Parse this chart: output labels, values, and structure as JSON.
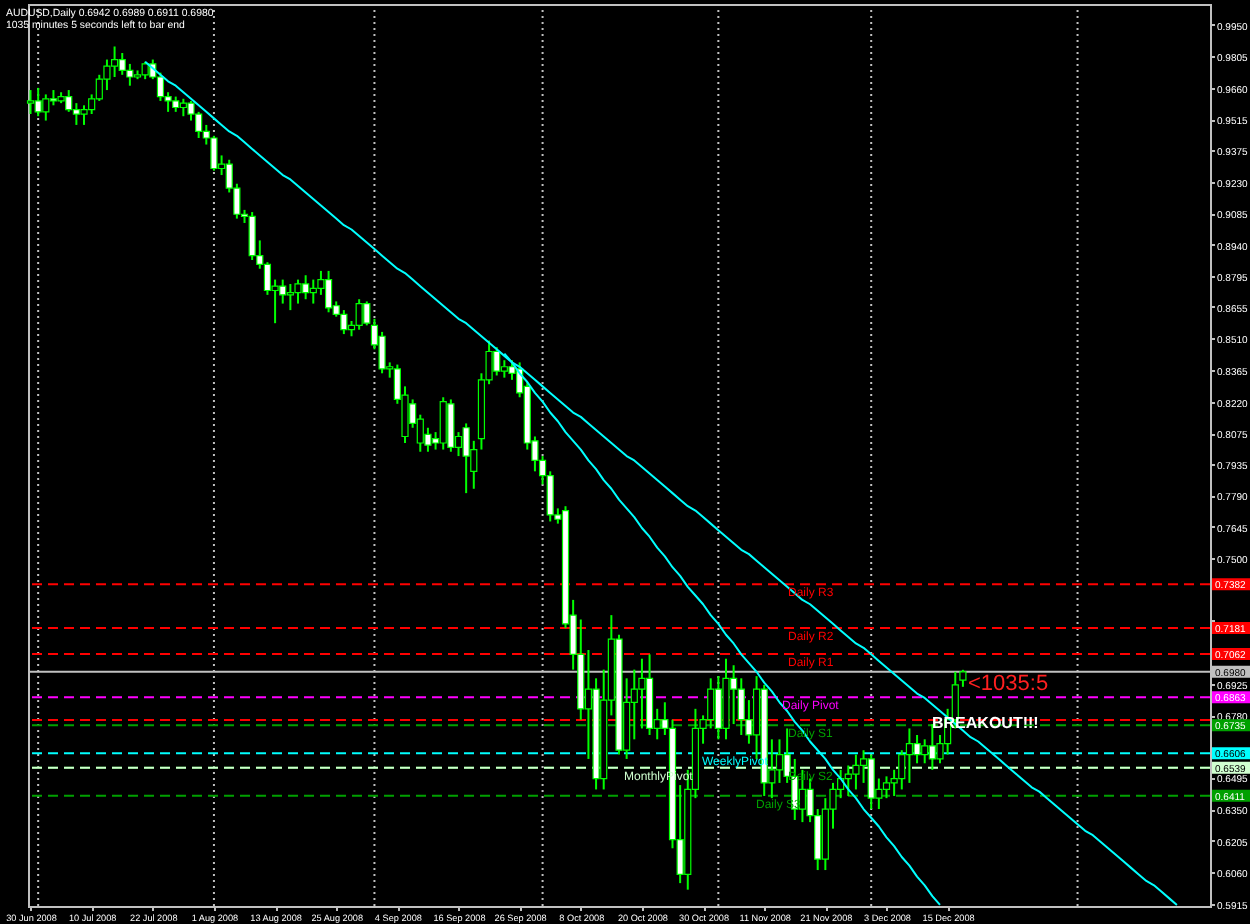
{
  "chart_data": {
    "type": "candlestick",
    "title": "AUDUSD,Daily  0.6942 0.6989 0.6911 0.6980",
    "subtitle": "1035 minutes 5 seconds left to bar end",
    "categories": [
      "30 Jun 2008",
      null,
      null,
      null,
      null,
      null,
      null,
      null,
      "10 Jul 2008",
      null,
      null,
      null,
      null,
      null,
      null,
      null,
      "22 Jul 2008",
      null,
      null,
      null,
      null,
      null,
      null,
      null,
      "1 Aug 2008",
      null,
      null,
      null,
      null,
      null,
      null,
      null,
      "13 Aug 2008",
      null,
      null,
      null,
      null,
      null,
      null,
      null,
      "25 Aug 2008",
      null,
      null,
      null,
      null,
      null,
      null,
      null,
      "4 Sep 2008",
      null,
      null,
      null,
      null,
      null,
      null,
      null,
      "16 Sep 2008",
      null,
      null,
      null,
      null,
      null,
      null,
      null,
      "26 Sep 2008",
      null,
      null,
      null,
      null,
      null,
      null,
      null,
      "8 Oct 2008",
      null,
      null,
      null,
      null,
      null,
      null,
      null,
      "20 Oct 2008",
      null,
      null,
      null,
      null,
      null,
      null,
      null,
      "30 Oct 2008",
      null,
      null,
      null,
      null,
      null,
      null,
      null,
      "11 Nov 2008",
      null,
      null,
      null,
      null,
      null,
      null,
      null,
      "21 Nov 2008",
      null,
      null,
      null,
      null,
      null,
      null,
      null,
      "3 Dec 2008",
      null,
      null,
      null,
      null,
      null,
      null,
      null,
      "15 Dec 2008",
      null,
      null,
      null,
      null,
      null,
      null,
      null,
      null,
      null,
      null,
      null,
      null,
      null,
      null,
      null,
      null,
      null,
      null,
      null,
      null,
      null,
      null,
      null,
      null,
      null,
      null,
      null,
      null,
      null,
      null,
      null,
      null,
      null,
      null
    ],
    "ylim": [
      0.5905,
      1.0045
    ],
    "yticks": [
      {
        "value": 0.995,
        "label": "0.9950"
      },
      {
        "value": 0.9805,
        "label": "0.9805"
      },
      {
        "value": 0.966,
        "label": "0.9660"
      },
      {
        "value": 0.9515,
        "label": "0.9515"
      },
      {
        "value": 0.9375,
        "label": "0.9375"
      },
      {
        "value": 0.923,
        "label": "0.9230"
      },
      {
        "value": 0.9085,
        "label": "0.9085"
      },
      {
        "value": 0.894,
        "label": "0.8940"
      },
      {
        "value": 0.8795,
        "label": "0.8795"
      },
      {
        "value": 0.8655,
        "label": "0.8655"
      },
      {
        "value": 0.851,
        "label": "0.8510"
      },
      {
        "value": 0.8365,
        "label": "0.8365"
      },
      {
        "value": 0.822,
        "label": "0.8220"
      },
      {
        "value": 0.8075,
        "label": "0.8075"
      },
      {
        "value": 0.7935,
        "label": "0.7935"
      },
      {
        "value": 0.779,
        "label": "0.7790"
      },
      {
        "value": 0.7645,
        "label": "0.7645"
      },
      {
        "value": 0.75,
        "label": "0.7500"
      },
      {
        "value": 0.7215,
        "label": null
      },
      {
        "value": 0.6925,
        "label": "0.6925"
      },
      {
        "value": 0.678,
        "label": "0.6780"
      },
      {
        "value": 0.6495,
        "label": "0.6495"
      },
      {
        "value": 0.635,
        "label": "0.6350"
      },
      {
        "value": 0.6205,
        "label": "0.6205"
      },
      {
        "value": 0.606,
        "label": "0.6060"
      },
      {
        "value": 0.5915,
        "label": "0.5915"
      }
    ],
    "series": [
      {
        "type": "candlestick",
        "color": "#00ff00",
        "colors": [
          "#000000",
          "#ffffff",
          "#000000",
          "#ffffff",
          "#000000",
          "#ffffff",
          "#ffffff",
          "#000000",
          "#000000",
          "#000000",
          "#000000",
          "#000000",
          "#ffffff",
          "#ffffff",
          "#000000",
          "#000000",
          "#ffffff",
          "#ffffff",
          "#ffffff",
          "#ffffff",
          "#000000",
          "#ffffff",
          "#ffffff",
          "#ffffff",
          "#ffffff",
          "#000000",
          "#ffffff",
          "#ffffff",
          "#ffffff",
          "#ffffff",
          "#ffffff",
          "#ffffff",
          "#000000",
          "#ffffff",
          "#000000",
          "#000000",
          "#ffffff",
          "#000000",
          "#000000",
          "#ffffff",
          "#ffffff",
          "#ffffff",
          "#000000",
          "#000000",
          "#ffffff",
          "#ffffff",
          "#ffffff",
          "#000000",
          "#ffffff",
          "#000000",
          "#ffffff",
          "#000000",
          "#ffffff",
          "#ffffff",
          "#000000",
          "#ffffff",
          "#000000",
          "#ffffff",
          "#000000",
          "#000000",
          "#000000",
          "#ffffff",
          "#000000",
          "#ffffff",
          "#ffffff",
          "#ffffff",
          "#ffffff",
          "#ffffff",
          "#ffffff",
          "#ffffff",
          "#ffffff",
          "#ffffff",
          "#ffffff",
          "#000000",
          "#ffffff",
          "#000000",
          "#000000",
          "#ffffff",
          "#000000",
          "#000000",
          "#000000",
          "#ffffff",
          "#000000",
          "#ffffff",
          "#ffffff",
          "#ffffff",
          "#000000",
          "#000000",
          "#000000",
          "#000000",
          "#ffffff",
          "#000000",
          "#ffffff",
          "#ffffff",
          "#ffffff",
          "#000000",
          "#ffffff",
          "#000000",
          "#000000",
          "#ffffff",
          "#ffffff",
          "#000000",
          "#ffffff",
          "#ffffff",
          "#000000",
          "#000000",
          "#000000",
          "#000000",
          "#000000",
          "#000000",
          "#ffffff",
          "#000000",
          "#000000",
          "#000000",
          "#000000",
          "#000000",
          "#ffffff",
          "#000000",
          "#ffffff",
          "#000000",
          "#000000",
          "#000000",
          "#000000",
          null,
          null,
          null,
          null,
          null,
          null,
          null,
          null,
          null,
          null,
          null,
          null,
          null,
          null,
          null,
          null,
          null,
          null,
          null,
          null,
          null,
          null,
          null,
          null,
          null,
          null,
          null,
          null,
          null,
          null,
          null,
          null
        ],
        "ohlc": [
          [
            0.959,
            0.965,
            0.954,
            0.96
          ],
          [
            0.96,
            0.966,
            0.953,
            0.955
          ],
          [
            0.955,
            0.963,
            0.951,
            0.961
          ],
          [
            0.961,
            0.965,
            0.958,
            0.96
          ],
          [
            0.96,
            0.964,
            0.959,
            0.962
          ],
          [
            0.962,
            0.965,
            0.955,
            0.956
          ],
          [
            0.956,
            0.959,
            0.949,
            0.954
          ],
          [
            0.954,
            0.958,
            0.949,
            0.956
          ],
          [
            0.956,
            0.963,
            0.954,
            0.961
          ],
          [
            0.961,
            0.972,
            0.96,
            0.97
          ],
          [
            0.97,
            0.979,
            0.965,
            0.976
          ],
          [
            0.976,
            0.985,
            0.971,
            0.979
          ],
          [
            0.979,
            0.982,
            0.972,
            0.974
          ],
          [
            0.974,
            0.977,
            0.967,
            0.971
          ],
          [
            0.971,
            0.974,
            0.97,
            0.972
          ],
          [
            0.972,
            0.978,
            0.97,
            0.977
          ],
          [
            0.977,
            0.979,
            0.97,
            0.971
          ],
          [
            0.971,
            0.973,
            0.96,
            0.962
          ],
          [
            0.962,
            0.964,
            0.955,
            0.96
          ],
          [
            0.96,
            0.962,
            0.955,
            0.957
          ],
          [
            0.957,
            0.961,
            0.953,
            0.959
          ],
          [
            0.959,
            0.96,
            0.951,
            0.954
          ],
          [
            0.954,
            0.955,
            0.943,
            0.946
          ],
          [
            0.946,
            0.949,
            0.94,
            0.943
          ],
          [
            0.943,
            0.944,
            0.928,
            0.929
          ],
          [
            0.929,
            0.935,
            0.926,
            0.931
          ],
          [
            0.931,
            0.933,
            0.918,
            0.92
          ],
          [
            0.92,
            0.922,
            0.906,
            0.908
          ],
          [
            0.908,
            0.91,
            0.904,
            0.907
          ],
          [
            0.907,
            0.909,
            0.887,
            0.889
          ],
          [
            0.889,
            0.896,
            0.883,
            0.885
          ],
          [
            0.885,
            0.886,
            0.871,
            0.873
          ],
          [
            0.873,
            0.878,
            0.858,
            0.875
          ],
          [
            0.875,
            0.878,
            0.867,
            0.871
          ],
          [
            0.871,
            0.876,
            0.864,
            0.872
          ],
          [
            0.872,
            0.878,
            0.867,
            0.876
          ],
          [
            0.876,
            0.88,
            0.869,
            0.872
          ],
          [
            0.872,
            0.878,
            0.867,
            0.874
          ],
          [
            0.874,
            0.882,
            0.871,
            0.878
          ],
          [
            0.878,
            0.882,
            0.863,
            0.865
          ],
          [
            0.866,
            0.868,
            0.861,
            0.862
          ],
          [
            0.862,
            0.864,
            0.853,
            0.855
          ],
          [
            0.855,
            0.859,
            0.852,
            0.857
          ],
          [
            0.857,
            0.869,
            0.855,
            0.867
          ],
          [
            0.867,
            0.868,
            0.857,
            0.858
          ],
          [
            0.857,
            0.86,
            0.846,
            0.848
          ],
          [
            0.852,
            0.854,
            0.835,
            0.837
          ],
          [
            0.837,
            0.84,
            0.833,
            0.838
          ],
          [
            0.837,
            0.839,
            0.821,
            0.823
          ],
          [
            0.806,
            0.829,
            0.803,
            0.825
          ],
          [
            0.821,
            0.823,
            0.81,
            0.812
          ],
          [
            0.803,
            0.816,
            0.799,
            0.814
          ],
          [
            0.807,
            0.81,
            0.799,
            0.802
          ],
          [
            0.805,
            0.808,
            0.8,
            0.803
          ],
          [
            0.803,
            0.824,
            0.8,
            0.822
          ],
          [
            0.821,
            0.823,
            0.799,
            0.801
          ],
          [
            0.801,
            0.808,
            0.797,
            0.806
          ],
          [
            0.81,
            0.812,
            0.78,
            0.797
          ],
          [
            0.79,
            0.804,
            0.782,
            0.8
          ],
          [
            0.805,
            0.835,
            0.8,
            0.832
          ],
          [
            0.832,
            0.85,
            0.83,
            0.845
          ],
          [
            0.845,
            0.847,
            0.834,
            0.836
          ],
          [
            0.836,
            0.841,
            0.833,
            0.838
          ],
          [
            0.838,
            0.841,
            0.832,
            0.835
          ],
          [
            0.837,
            0.84,
            0.824,
            0.826
          ],
          [
            0.829,
            0.831,
            0.8,
            0.803
          ],
          [
            0.804,
            0.806,
            0.79,
            0.795
          ],
          [
            0.795,
            0.797,
            0.784,
            0.788
          ],
          [
            0.788,
            0.79,
            0.767,
            0.77
          ],
          [
            0.77,
            0.773,
            0.766,
            0.768
          ],
          [
            0.772,
            0.774,
            0.718,
            0.72
          ],
          [
            0.724,
            0.731,
            0.699,
            0.706
          ],
          [
            0.706,
            0.722,
            0.676,
            0.681
          ],
          [
            0.681,
            0.708,
            0.658,
            0.69
          ],
          [
            0.69,
            0.695,
            0.644,
            0.649
          ],
          [
            0.649,
            0.699,
            0.644,
            0.685
          ],
          [
            0.685,
            0.724,
            0.678,
            0.713
          ],
          [
            0.713,
            0.715,
            0.66,
            0.662
          ],
          [
            0.662,
            0.695,
            0.658,
            0.684
          ],
          [
            0.684,
            0.699,
            0.667,
            0.69
          ],
          [
            0.69,
            0.704,
            0.672,
            0.695
          ],
          [
            0.695,
            0.706,
            0.669,
            0.672
          ],
          [
            0.672,
            0.681,
            0.667,
            0.676
          ],
          [
            0.676,
            0.684,
            0.669,
            0.672
          ],
          [
            0.672,
            0.676,
            0.617,
            0.621
          ],
          [
            0.621,
            0.646,
            0.601,
            0.605
          ],
          [
            0.605,
            0.653,
            0.598,
            0.644
          ],
          [
            0.644,
            0.681,
            0.64,
            0.672
          ],
          [
            0.672,
            0.678,
            0.665,
            0.676
          ],
          [
            0.676,
            0.695,
            0.672,
            0.69
          ],
          [
            0.69,
            0.696,
            0.667,
            0.672
          ],
          [
            0.672,
            0.704,
            0.667,
            0.695
          ],
          [
            0.695,
            0.701,
            0.674,
            0.69
          ],
          [
            0.69,
            0.695,
            0.669,
            0.676
          ],
          [
            0.676,
            0.685,
            0.665,
            0.669
          ],
          [
            0.669,
            0.696,
            0.658,
            0.69
          ],
          [
            0.69,
            0.692,
            0.641,
            0.647
          ],
          [
            0.647,
            0.667,
            0.64,
            0.653
          ],
          [
            0.653,
            0.667,
            0.647,
            0.66
          ],
          [
            0.66,
            0.672,
            0.647,
            0.65
          ],
          [
            0.65,
            0.658,
            0.63,
            0.635
          ],
          [
            0.635,
            0.653,
            0.629,
            0.644
          ],
          [
            0.644,
            0.649,
            0.629,
            0.632
          ],
          [
            0.632,
            0.635,
            0.607,
            0.612
          ],
          [
            0.612,
            0.64,
            0.607,
            0.635
          ],
          [
            0.635,
            0.647,
            0.626,
            0.644
          ],
          [
            0.644,
            0.653,
            0.64,
            0.649
          ],
          [
            0.649,
            0.655,
            0.641,
            0.651
          ],
          [
            0.651,
            0.66,
            0.644,
            0.655
          ],
          [
            0.655,
            0.662,
            0.647,
            0.658
          ],
          [
            0.658,
            0.66,
            0.635,
            0.64
          ],
          [
            0.64,
            0.649,
            0.635,
            0.644
          ],
          [
            0.644,
            0.65,
            0.64,
            0.647
          ],
          [
            0.647,
            0.653,
            0.641,
            0.649
          ],
          [
            0.649,
            0.662,
            0.644,
            0.66
          ],
          [
            0.66,
            0.672,
            0.647,
            0.665
          ],
          [
            0.665,
            0.669,
            0.656,
            0.66
          ],
          [
            0.66,
            0.667,
            0.656,
            0.664
          ],
          [
            0.664,
            0.674,
            0.653,
            0.658
          ],
          [
            0.658,
            0.669,
            0.656,
            0.665
          ],
          [
            0.665,
            0.681,
            0.66,
            0.676
          ],
          [
            0.676,
            0.698,
            0.672,
            0.692
          ],
          [
            0.6942,
            0.6989,
            0.6911,
            0.698
          ],
          null,
          null,
          null,
          null,
          null,
          null,
          null,
          null,
          null,
          null,
          null,
          null,
          null,
          null,
          null,
          null,
          null,
          null,
          null,
          null,
          null,
          null,
          null,
          null,
          null,
          null,
          null,
          null,
          null,
          null,
          null,
          null
        ]
      },
      {
        "type": "line",
        "color": "#00ffff",
        "values": [
          null,
          null,
          null,
          null,
          null,
          null,
          null,
          null,
          null,
          null,
          null,
          null,
          null,
          null,
          null,
          0.978,
          0.975,
          0.972,
          0.969,
          0.967,
          0.964,
          0.961,
          0.958,
          0.955,
          0.952,
          0.949,
          0.946,
          0.944,
          0.941,
          0.938,
          0.935,
          0.932,
          0.929,
          0.926,
          0.924,
          0.921,
          0.918,
          0.915,
          0.912,
          0.909,
          0.906,
          0.903,
          0.901,
          0.898,
          0.895,
          0.892,
          0.889,
          0.886,
          0.883,
          0.881,
          0.878,
          0.875,
          0.872,
          0.869,
          0.866,
          0.863,
          0.86,
          0.858,
          0.855,
          0.852,
          0.849,
          0.846,
          0.843,
          0.84,
          0.838,
          0.835,
          0.832,
          0.829,
          0.826,
          0.823,
          0.82,
          0.817,
          0.815,
          0.812,
          0.809,
          0.806,
          0.803,
          0.8,
          0.797,
          0.795,
          0.792,
          0.789,
          0.786,
          0.783,
          0.78,
          0.777,
          0.774,
          0.772,
          0.769,
          0.766,
          0.763,
          0.76,
          0.757,
          0.754,
          0.752,
          0.749,
          0.746,
          0.743,
          0.74,
          0.737,
          0.734,
          0.731,
          0.729,
          0.726,
          0.723,
          0.72,
          0.717,
          0.714,
          0.711,
          0.709,
          0.706,
          0.703,
          0.7,
          0.697,
          0.694,
          0.691,
          0.688,
          0.686,
          0.683,
          0.68,
          0.677,
          0.674,
          0.671,
          0.668,
          0.666,
          0.663,
          0.66,
          0.657,
          0.654,
          0.651,
          0.648,
          0.645,
          0.643,
          0.64,
          0.637,
          0.634,
          0.631,
          0.628,
          0.625,
          0.623,
          0.62,
          0.617,
          0.614,
          0.611,
          0.608,
          0.605,
          0.602,
          0.6,
          0.597,
          0.594,
          0.591,
          null,
          null,
          null,
          null
        ]
      },
      {
        "type": "line",
        "color": "#00ffff",
        "values": [
          null,
          null,
          null,
          null,
          null,
          null,
          null,
          null,
          null,
          null,
          null,
          null,
          null,
          null,
          null,
          null,
          null,
          null,
          null,
          null,
          null,
          null,
          null,
          null,
          null,
          null,
          null,
          null,
          null,
          null,
          null,
          null,
          null,
          null,
          null,
          null,
          null,
          null,
          null,
          null,
          null,
          null,
          null,
          null,
          null,
          null,
          null,
          null,
          null,
          null,
          null,
          null,
          null,
          null,
          null,
          null,
          null,
          null,
          null,
          null,
          null,
          null,
          0.844,
          0.84,
          0.835,
          0.831,
          0.826,
          0.822,
          0.817,
          0.813,
          0.808,
          0.804,
          0.8,
          0.795,
          0.791,
          0.786,
          0.782,
          0.777,
          0.773,
          0.769,
          0.764,
          0.76,
          0.755,
          0.751,
          0.746,
          0.742,
          0.737,
          0.733,
          0.729,
          0.724,
          0.72,
          0.715,
          0.711,
          0.706,
          0.702,
          0.698,
          0.693,
          0.689,
          0.684,
          0.68,
          0.675,
          0.671,
          0.666,
          0.662,
          0.658,
          0.653,
          0.649,
          0.644,
          0.64,
          0.635,
          0.631,
          0.627,
          0.622,
          0.618,
          0.613,
          0.609,
          0.604,
          0.6,
          0.595,
          0.591,
          null,
          null,
          null,
          null,
          null,
          null,
          null,
          null,
          null,
          null,
          null,
          null,
          null,
          null,
          null,
          null,
          null,
          null,
          null,
          null,
          null,
          null,
          null,
          null,
          null,
          null,
          null,
          null,
          null,
          null,
          null,
          null,
          null,
          null,
          null
        ]
      }
    ],
    "ref_lines": [
      {
        "axis": "y",
        "value": 0.7382,
        "label": "Daily R3",
        "color": "#ff0000",
        "line_style": "dashed"
      },
      {
        "axis": "y",
        "value": 0.7181,
        "label": "Daily R2",
        "color": "#ff0000",
        "line_style": "dashed"
      },
      {
        "axis": "y",
        "value": 0.7062,
        "label": "Daily R1",
        "color": "#ff0000",
        "line_style": "dashed"
      },
      {
        "axis": "y",
        "value": 0.698,
        "color": "#c0c0c0",
        "line_style": "solid"
      },
      {
        "axis": "y",
        "value": 0.6863,
        "label": "Daily Pivot",
        "color": "#ff00ff",
        "line_style": "dashed"
      },
      {
        "axis": "y",
        "value": 0.6759,
        "color": "#ff0000",
        "line_style": "dashed"
      },
      {
        "axis": "y",
        "value": 0.6735,
        "label": "Daily S1",
        "color": "#00a000",
        "line_style": "dashed"
      },
      {
        "axis": "y",
        "value": 0.6606,
        "label": "WeeklyPivot",
        "color": "#00ffff",
        "line_style": "dashed"
      },
      {
        "axis": "y",
        "value": 0.6539,
        "label": "Daily S2",
        "color": "#00a000",
        "line_style": "dashed"
      },
      {
        "axis": "y",
        "value": 0.6539,
        "label": "MonthlyPivot",
        "color": "#d0ffd0",
        "line_style": "dashed"
      },
      {
        "axis": "y",
        "value": 0.6411,
        "label": "Daily S3",
        "color": "#00a000",
        "line_style": "dashed"
      }
    ],
    "annotations": [
      {
        "text": "0.7382",
        "y": 0.7382
      },
      {
        "text": "0.7181",
        "y": 0.7181
      },
      {
        "text": "0.7062",
        "y": 0.7062
      },
      {
        "text": "0.6980",
        "y": 0.698
      },
      {
        "text": "0.6863",
        "y": 0.6863
      },
      {
        "text": "0.6735",
        "y": 0.6735
      },
      {
        "text": "0.6606",
        "y": 0.6606
      },
      {
        "text": "0.6539",
        "y": 0.6539
      },
      {
        "text": "0.6411",
        "y": 0.6411
      },
      "BREAKOUT!!!",
      "<1035:5"
    ]
  }
}
